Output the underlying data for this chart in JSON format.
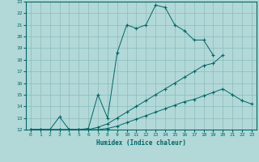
{
  "xlabel": "Humidex (Indice chaleur)",
  "background_color": "#b2d8d8",
  "grid_color": "#8bbcbc",
  "line_color": "#006666",
  "xlim": [
    -0.5,
    23.5
  ],
  "ylim": [
    12,
    23
  ],
  "xticks": [
    0,
    1,
    2,
    3,
    4,
    5,
    6,
    7,
    8,
    9,
    10,
    11,
    12,
    13,
    14,
    15,
    16,
    17,
    18,
    19,
    20,
    21,
    22,
    23
  ],
  "yticks": [
    12,
    13,
    14,
    15,
    16,
    17,
    18,
    19,
    20,
    21,
    22,
    23
  ],
  "line1_x": [
    0,
    1,
    2,
    3,
    4,
    5,
    6,
    7,
    8,
    9,
    10,
    11,
    12,
    13,
    14,
    15,
    16,
    17,
    18,
    19
  ],
  "line1_y": [
    12,
    12,
    12,
    13.1,
    12,
    12,
    12.1,
    15.0,
    13.0,
    18.6,
    21.0,
    20.7,
    21.0,
    22.7,
    22.5,
    21.0,
    20.5,
    19.7,
    19.7,
    18.4
  ],
  "line2_x": [
    0,
    1,
    2,
    3,
    4,
    5,
    6,
    7,
    8,
    9,
    10,
    11,
    12,
    13,
    14,
    15,
    16,
    17,
    18,
    19,
    20
  ],
  "line2_y": [
    12,
    12,
    12,
    12,
    12,
    12,
    12,
    12.2,
    12.5,
    13.0,
    13.5,
    14.0,
    14.5,
    15.0,
    15.5,
    16.0,
    16.5,
    17.0,
    17.5,
    17.7,
    18.4
  ],
  "line3_x": [
    0,
    1,
    2,
    3,
    4,
    5,
    6,
    7,
    8,
    9,
    10,
    11,
    12,
    13,
    14,
    15,
    16,
    17,
    18,
    19,
    20,
    21,
    22,
    23
  ],
  "line3_y": [
    12,
    12,
    12,
    12,
    12,
    12,
    12,
    12,
    12.1,
    12.3,
    12.6,
    12.9,
    13.2,
    13.5,
    13.8,
    14.1,
    14.4,
    14.6,
    14.9,
    15.2,
    15.5,
    15.0,
    14.5,
    14.2
  ]
}
